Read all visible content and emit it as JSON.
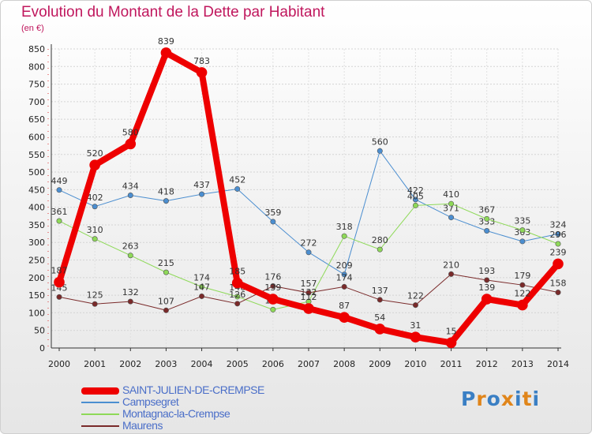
{
  "header": {
    "title": "Evolution du Montant de la Dette par Habitant",
    "unit": "(en €)"
  },
  "logo": {
    "text": "Proxiti",
    "letters": [
      "P",
      "r",
      "o",
      "x",
      "i",
      "t",
      "i"
    ],
    "letter_colors": [
      "#3a7fc4",
      "#e0851a",
      "#3a7fc4",
      "#e0851a",
      "#3a7fc4",
      "#e0851a",
      "#3a7fc4"
    ]
  },
  "chart_data": {
    "type": "line",
    "title": "Evolution du Montant de la Dette par Habitant",
    "ylabel": "(en €)",
    "xlabel": "",
    "x": [
      "2000",
      "2001",
      "2002",
      "2003",
      "2004",
      "2005",
      "2006",
      "2007",
      "2008",
      "2009",
      "2010",
      "2011",
      "2012",
      "2013",
      "2014"
    ],
    "ylim": [
      0,
      850
    ],
    "yticks": [
      0,
      50,
      100,
      150,
      200,
      250,
      300,
      350,
      400,
      450,
      500,
      550,
      600,
      650,
      700,
      750,
      800,
      850
    ],
    "grid": true,
    "legend_position": "bottom",
    "series": [
      {
        "name": "SAINT-JULIEN-DE-CREMPSE",
        "color": "#ee0000",
        "width": 8,
        "values": [
          187,
          520,
          580,
          839,
          783,
          185,
          139,
          112,
          87,
          54,
          31,
          15,
          139,
          122,
          239
        ],
        "labels": [
          "187",
          "520",
          "580",
          "839",
          "783",
          "185",
          "139",
          "112",
          "87",
          "54",
          "31",
          "15",
          "139",
          "122",
          "239"
        ]
      },
      {
        "name": "Campsegret",
        "color": "#4b8ed0",
        "width": 1,
        "values": [
          449,
          402,
          434,
          418,
          437,
          452,
          359,
          272,
          209,
          560,
          422,
          371,
          333,
          303,
          324
        ],
        "labels": [
          "449",
          "402",
          "434",
          "418",
          "437",
          "452",
          "359",
          "272",
          "209",
          "560",
          "422",
          "371",
          "333",
          "303",
          "324"
        ]
      },
      {
        "name": "Montagnac-la-Crempse",
        "color": "#8ed958",
        "width": 1,
        "values": [
          361,
          310,
          263,
          215,
          174,
          146,
          109,
          132,
          318,
          280,
          405,
          410,
          367,
          335,
          296
        ],
        "labels": [
          "361",
          "310",
          "263",
          "215",
          "174",
          "146",
          "109",
          "132",
          "318",
          "280",
          "405",
          "410",
          "367",
          "335",
          "296"
        ]
      },
      {
        "name": "Maurens",
        "color": "#7a2a2a",
        "width": 1,
        "values": [
          145,
          125,
          132,
          107,
          147,
          126,
          176,
          157,
          174,
          137,
          122,
          210,
          193,
          179,
          158
        ],
        "labels": [
          "145",
          "125",
          "132",
          "107",
          "147",
          "126",
          "176",
          "157",
          "174",
          "137",
          "122",
          "210",
          "193",
          "179",
          "158"
        ]
      }
    ]
  }
}
